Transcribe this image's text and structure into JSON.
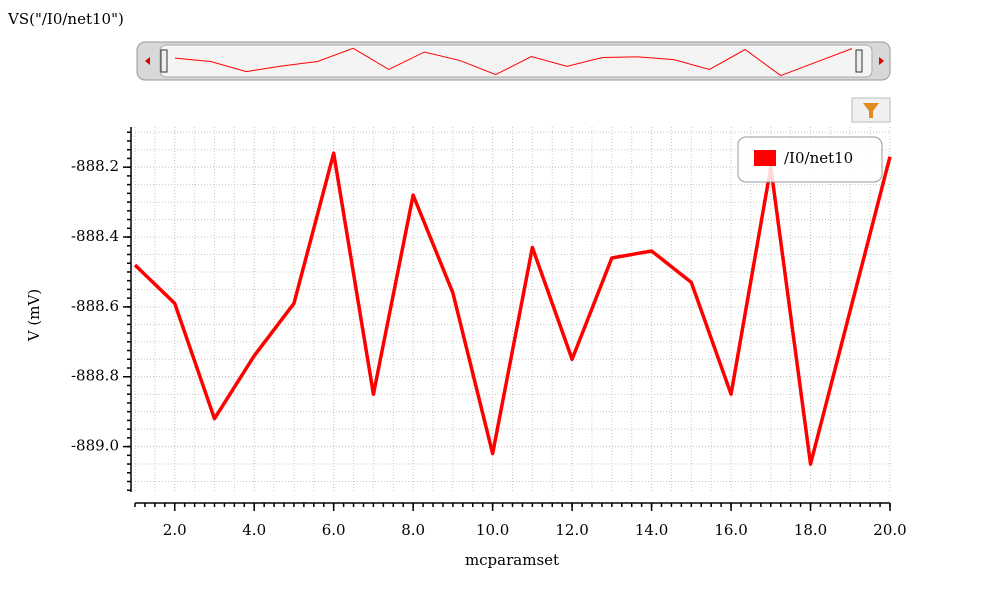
{
  "chart_data": {
    "type": "line",
    "title": "VS(\"/I0/net10\")",
    "x_label": "mcparamset",
    "y_label": "V (mV)",
    "x": [
      1,
      2,
      3,
      4,
      5,
      6,
      7,
      8,
      9,
      10,
      11,
      12,
      13,
      14,
      15,
      16,
      17,
      18,
      19,
      20
    ],
    "series": [
      {
        "name": "/I0/net10",
        "color": "#ff0000",
        "values": [
          -888.48,
          -888.59,
          -888.92,
          -888.74,
          -888.59,
          -888.16,
          -888.85,
          -888.28,
          -888.56,
          -889.02,
          -888.43,
          -888.75,
          -888.46,
          -888.44,
          -888.53,
          -888.85,
          -888.2,
          -889.05,
          -888.61,
          -888.17
        ]
      }
    ],
    "xlim": [
      1,
      20
    ],
    "xticks": [
      {
        "value": 2,
        "label": "2.0"
      },
      {
        "value": 4,
        "label": "4.0"
      },
      {
        "value": 6,
        "label": "6.0"
      },
      {
        "value": 8,
        "label": "8.0"
      },
      {
        "value": 10,
        "label": "10.0"
      },
      {
        "value": 12,
        "label": "12.0"
      },
      {
        "value": 14,
        "label": "14.0"
      },
      {
        "value": 16,
        "label": "16.0"
      },
      {
        "value": 18,
        "label": "18.0"
      },
      {
        "value": 20,
        "label": "20.0"
      }
    ],
    "ylim": [
      -889.13,
      -888.085
    ],
    "yticks": [
      -888.2,
      -888.4,
      -888.6,
      -888.8,
      {
        "value": -889,
        "label": "-889.0"
      }
    ],
    "grid": true,
    "legend": "top-right"
  }
}
